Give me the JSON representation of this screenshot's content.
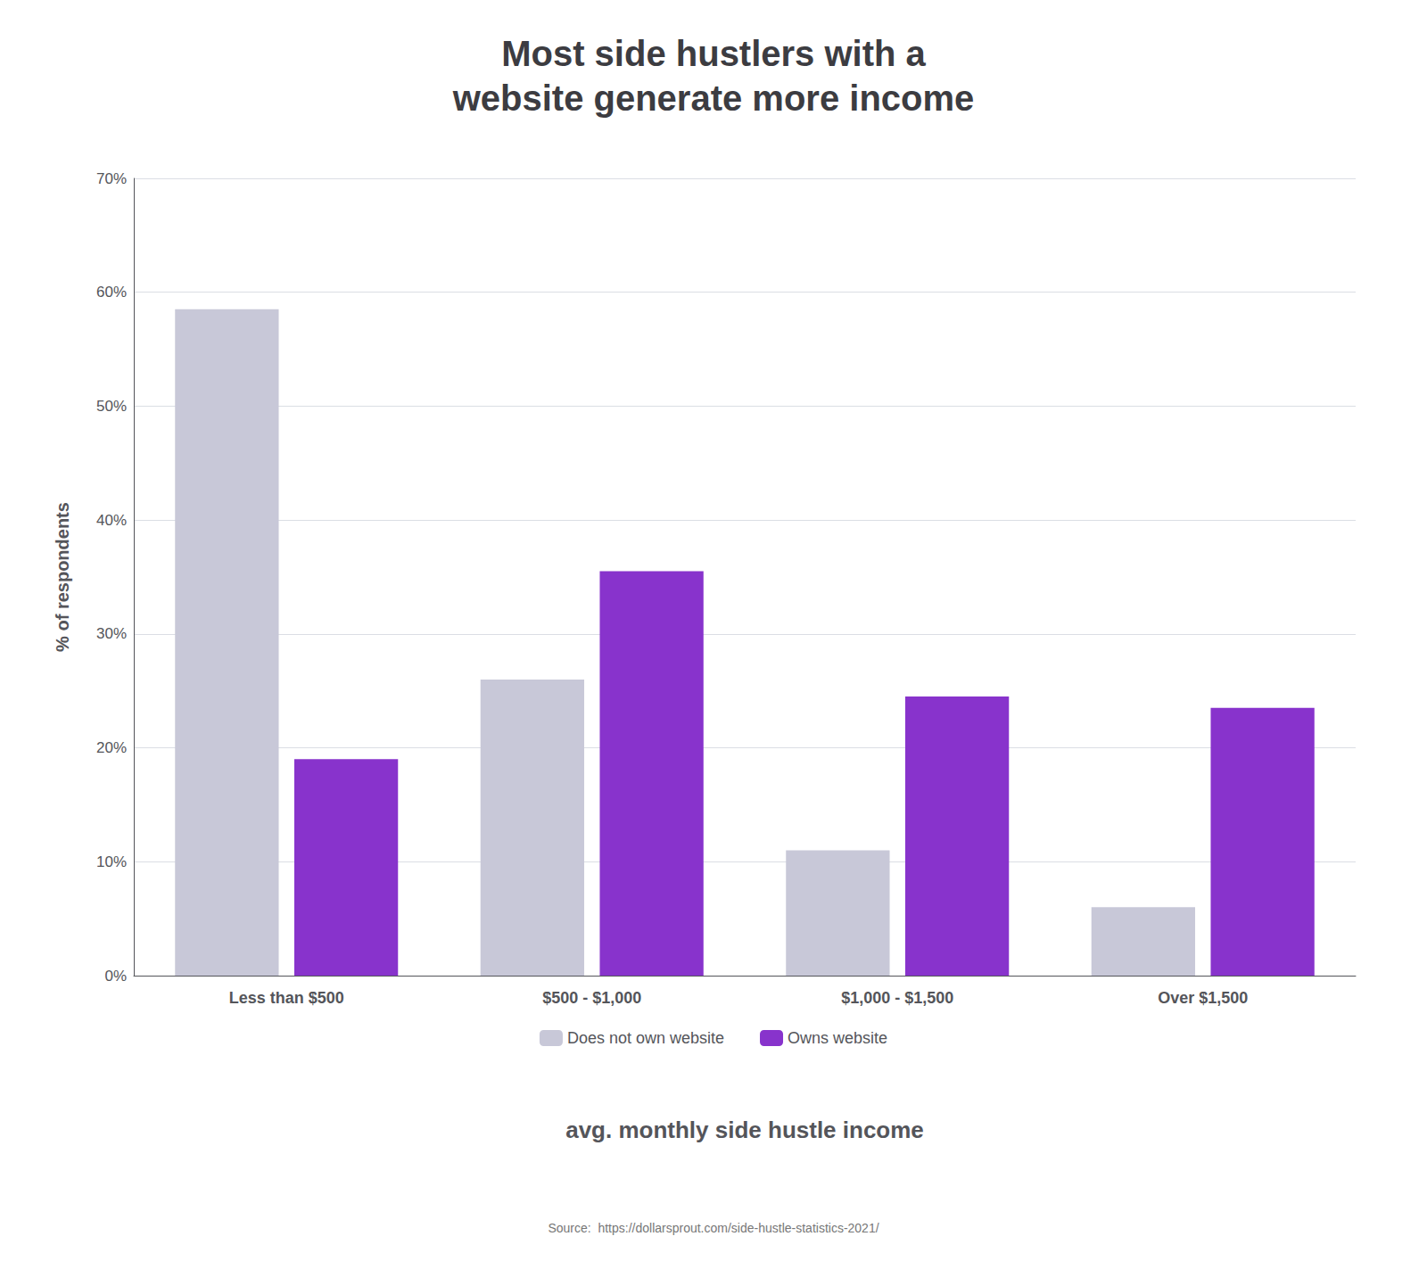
{
  "chart_data": {
    "type": "bar",
    "title": "Most side hustlers with a\nwebsite generate more income",
    "xlabel": "avg. monthly side hustle income",
    "ylabel": "% of respondents",
    "categories": [
      "Less than $500",
      "$500 - $1,000",
      "$1,000 - $1,500",
      "Over $1,500"
    ],
    "series": [
      {
        "name": "Does not own website",
        "color": "#c8c8d8",
        "values": [
          58.5,
          26.0,
          11.0,
          6.0
        ]
      },
      {
        "name": "Owns website",
        "color": "#8833cc",
        "values": [
          19.0,
          35.5,
          24.5,
          23.5
        ]
      }
    ],
    "ylim": [
      0,
      70
    ],
    "yticks": [
      {
        "value": 0,
        "label": "0%"
      },
      {
        "value": 10,
        "label": "10%"
      },
      {
        "value": 20,
        "label": "20%"
      },
      {
        "value": 30,
        "label": "30%"
      },
      {
        "value": 40,
        "label": "40%"
      },
      {
        "value": 50,
        "label": "50%"
      },
      {
        "value": 60,
        "label": "60%"
      },
      {
        "value": 70,
        "label": "70%"
      }
    ],
    "grid": true,
    "legend": "bottom",
    "annotations": [
      "Source:  https://dollarsprout.com/side-hustle-statistics-2021/"
    ]
  }
}
